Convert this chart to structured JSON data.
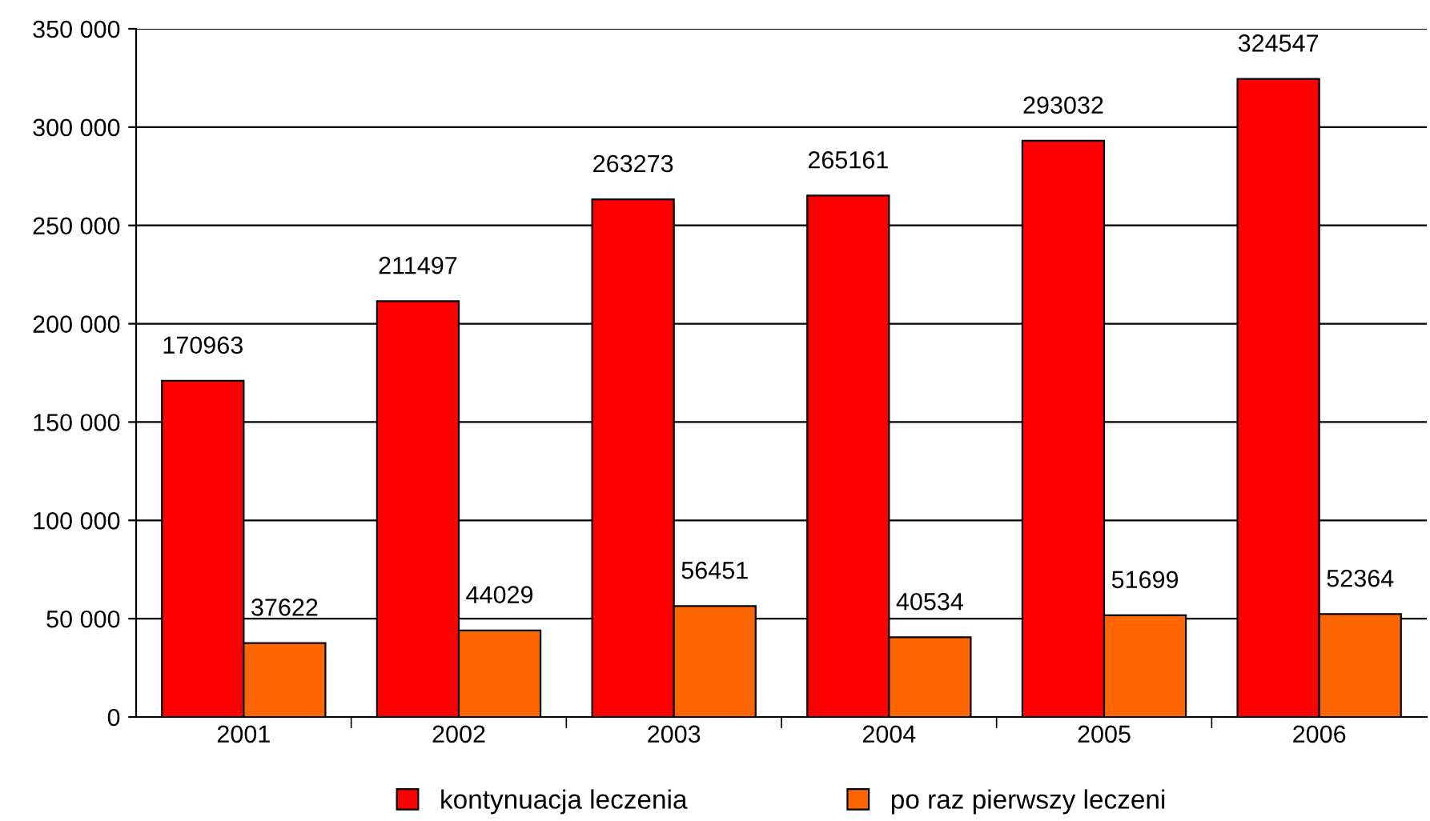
{
  "chart_data": {
    "type": "bar",
    "categories": [
      "2001",
      "2002",
      "2003",
      "2004",
      "2005",
      "2006"
    ],
    "series": [
      {
        "name": "kontynuacja leczenia",
        "color": "#ff0000",
        "values": [
          170963,
          211497,
          263273,
          265161,
          293032,
          324547
        ]
      },
      {
        "name": "po raz pierwszy leczeni",
        "color": "#ff6600",
        "values": [
          37622,
          44029,
          56451,
          40534,
          51699,
          52364
        ]
      }
    ],
    "ylim": [
      0,
      350000
    ],
    "yticks": [
      0,
      {
        "value": 50000,
        "label": "50 000"
      },
      {
        "value": 100000,
        "label": "100 000"
      },
      {
        "value": 150000,
        "label": "150 000"
      },
      {
        "value": 200000,
        "label": "200 000"
      },
      {
        "value": 250000,
        "label": "250 000"
      },
      {
        "value": 300000,
        "label": "300 000"
      },
      {
        "value": 350000,
        "label": "350 000"
      }
    ],
    "grid": "y",
    "legend": "bottom",
    "data_labels": true
  }
}
